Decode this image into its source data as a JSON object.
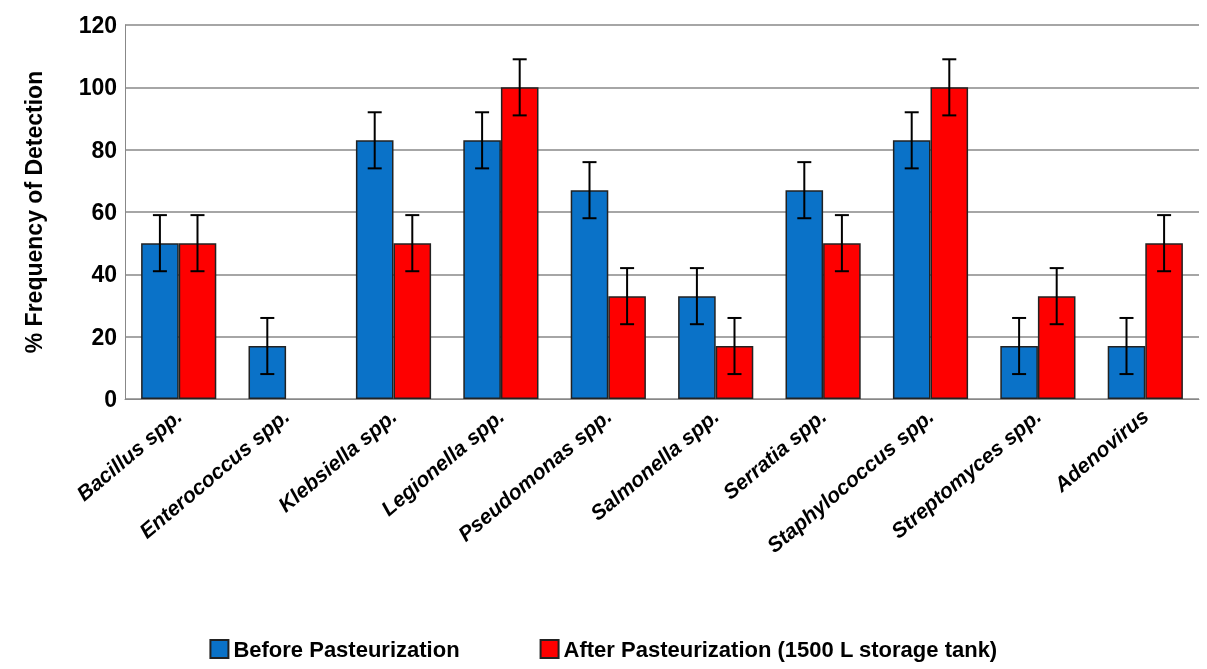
{
  "chart_data": {
    "type": "bar",
    "ylabel": "% Frequency of Detection",
    "categories": [
      "Bacillus spp.",
      "Enterococcus spp.",
      "Klebsiella spp.",
      "Legionella spp.",
      "Pseudomonas spp.",
      "Salmonella spp.",
      "Serratia spp.",
      "Staphylococcus spp.",
      "Streptomyces spp.",
      "Adenovirus"
    ],
    "series": [
      {
        "name": "Before Pasteurization",
        "color": "#0a72c8",
        "values": [
          50,
          17,
          83,
          83,
          67,
          33,
          67,
          83,
          17,
          17
        ],
        "errors": [
          9,
          9,
          9,
          9,
          9,
          9,
          9,
          9,
          9,
          9
        ]
      },
      {
        "name": "After Pasteurization (1500 L storage tank)",
        "color": "#fe0000",
        "values": [
          50,
          0,
          50,
          100,
          33,
          17,
          50,
          100,
          33,
          50
        ],
        "errors": [
          9,
          null,
          9,
          9,
          9,
          9,
          9,
          9,
          9,
          9
        ]
      }
    ],
    "ylim": [
      0,
      120
    ],
    "yticks": [
      0,
      20,
      40,
      60,
      80,
      100,
      120
    ],
    "grid": "y",
    "legend": "bottom"
  }
}
